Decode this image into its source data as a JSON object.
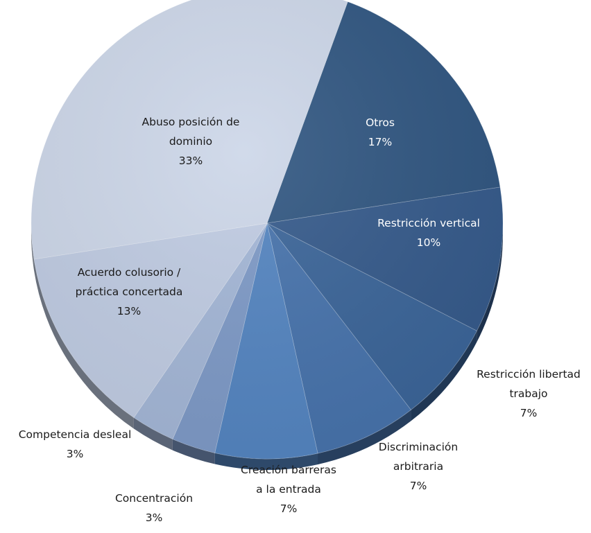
{
  "chart_data": {
    "type": "pie",
    "title": "",
    "slices": [
      {
        "label_lines": [
          "Otros"
        ],
        "value_label": "17%",
        "value": 17,
        "color": "#2f5580"
      },
      {
        "label_lines": [
          "Restricción vertical"
        ],
        "value_label": "10%",
        "value": 10,
        "color": "#34598a"
      },
      {
        "label_lines": [
          "Restricción libertad",
          "trabajo"
        ],
        "value_label": "7%",
        "value": 7,
        "color": "#3a6498"
      },
      {
        "label_lines": [
          "Discriminación",
          "arbitraria"
        ],
        "value_label": "7%",
        "value": 7,
        "color": "#4672ab"
      },
      {
        "label_lines": [
          "Creación barreras",
          "a la entrada"
        ],
        "value_label": "7%",
        "value": 7,
        "color": "#5384c0"
      },
      {
        "label_lines": [
          "Concentración"
        ],
        "value_label": "3%",
        "value": 3,
        "color": "#7d99c6"
      },
      {
        "label_lines": [
          "Competencia desleal"
        ],
        "value_label": "3%",
        "value": 3,
        "color": "#a3b6d6"
      },
      {
        "label_lines": [
          "Acuerdo colusorio /",
          "práctica concertada"
        ],
        "value_label": "13%",
        "value": 13,
        "color": "#bfcbe2"
      },
      {
        "label_lines": [
          "Abuso posición de",
          "dominio"
        ],
        "value_label": "33%",
        "value": 33,
        "color": "#ccd6e8"
      }
    ],
    "start_angle_deg": 20,
    "direction": "clockwise",
    "style": "3d-tilted"
  }
}
